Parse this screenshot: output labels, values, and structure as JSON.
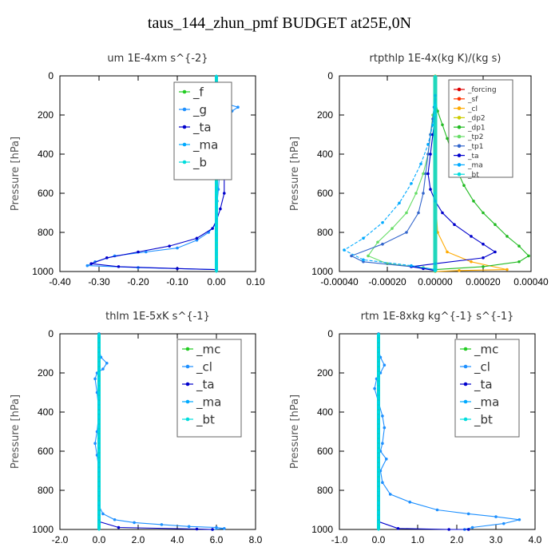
{
  "page_title": "taus_144_zhun_pmf  BUDGET at25E,0N",
  "chart_data": [
    {
      "type": "line",
      "title": "um   1E-4xm s^{-2}",
      "ylabel": "Pressure [hPa]",
      "xlim": [
        -0.4,
        0.1
      ],
      "ylim": [
        1000,
        0
      ],
      "xticks": [
        -0.4,
        -0.3,
        -0.2,
        -0.1,
        0.0,
        0.1
      ],
      "xticklabels": [
        "-0.40",
        "-0.30",
        "-0.20",
        "-0.10",
        "0.00",
        "0.10"
      ],
      "yticks": [
        0,
        200,
        400,
        600,
        800,
        1000
      ],
      "legend": "top-right",
      "legend_entries": [
        "_f",
        "_g",
        "_ta",
        "_ma",
        "_b"
      ],
      "series": [
        {
          "name": "_f",
          "color": "#22cc22",
          "x": [
            0,
            0,
            0,
            0,
            0,
            0,
            0,
            0,
            0,
            0,
            0
          ],
          "y": [
            0,
            100,
            200,
            300,
            400,
            500,
            600,
            700,
            800,
            900,
            1000
          ]
        },
        {
          "name": "_g",
          "color": "#1e90ff",
          "x": [
            0,
            0.005,
            0.02,
            0.055,
            0.04,
            0.01,
            -0.005,
            -0.01,
            -0.005,
            0.005,
            0.01,
            0.008,
            0.005,
            0.002,
            0,
            -0.002,
            -0.02,
            -0.05,
            -0.1,
            -0.18,
            -0.26,
            -0.31,
            -0.33,
            -0.2,
            0
          ],
          "y": [
            80,
            120,
            140,
            160,
            180,
            200,
            220,
            250,
            280,
            320,
            400,
            500,
            580,
            640,
            700,
            760,
            800,
            840,
            880,
            900,
            920,
            950,
            970,
            980,
            990
          ]
        },
        {
          "name": "_ta",
          "color": "#0000cc",
          "x": [
            0,
            -0.005,
            -0.01,
            -0.02,
            -0.01,
            0,
            0,
            0.01,
            0.02,
            0.02,
            0.01,
            0,
            -0.01,
            -0.05,
            -0.12,
            -0.2,
            -0.28,
            -0.32,
            -0.25,
            -0.1,
            0
          ],
          "y": [
            100,
            140,
            160,
            180,
            210,
            240,
            300,
            400,
            500,
            600,
            680,
            740,
            780,
            830,
            870,
            900,
            930,
            960,
            975,
            985,
            990
          ]
        },
        {
          "name": "_ma",
          "color": "#00aaff",
          "x": [
            0,
            0,
            0,
            0,
            0,
            0,
            0,
            0,
            0,
            0
          ],
          "y": [
            0,
            200,
            400,
            600,
            800,
            900,
            950,
            980,
            990,
            1000
          ]
        },
        {
          "name": "_b",
          "color": "#00dddd",
          "x": [
            0,
            0,
            0,
            0,
            0,
            0
          ],
          "y": [
            0,
            200,
            400,
            600,
            800,
            1000
          ]
        }
      ]
    },
    {
      "type": "line",
      "title": "rtpthlp   1E-4x(kg K)/(kg s)",
      "ylabel": "Pressure [hPa]",
      "xlim": [
        -0.0004,
        0.0004
      ],
      "ylim": [
        1000,
        0
      ],
      "xticks": [
        -0.0004,
        -0.0002,
        0,
        0.0002,
        0.0004
      ],
      "xticklabels": [
        "-0.00040",
        "-0.00020",
        "0.00000",
        "0.00020",
        "0.00040"
      ],
      "yticks": [
        0,
        200,
        400,
        600,
        800,
        1000
      ],
      "legend": "top-right",
      "legend_entries": [
        "_forcing",
        "_sf",
        "_cl",
        "_dp2",
        "_dp1",
        "_tp2",
        "_tp1",
        "_ta",
        "_ma",
        "_bt"
      ],
      "series": [
        {
          "name": "_forcing",
          "color": "#dd0000",
          "x": [
            0,
            0,
            0,
            0,
            0,
            0
          ],
          "y": [
            0,
            200,
            400,
            600,
            800,
            1000
          ]
        },
        {
          "name": "_sf",
          "color": "#ff3300",
          "x": [
            0,
            0,
            0,
            0,
            0,
            0
          ],
          "y": [
            0,
            200,
            400,
            600,
            800,
            1000
          ]
        },
        {
          "name": "_cl",
          "color": "#ffaa00",
          "x": [
            0,
            0,
            0,
            0,
            1e-05,
            5e-05,
            0.00015,
            0.0003,
            0.0001,
            0
          ],
          "y": [
            0,
            200,
            400,
            600,
            800,
            900,
            950,
            990,
            995,
            1000
          ]
        },
        {
          "name": "_dp2",
          "color": "#cccc00",
          "x": [
            0,
            0,
            0,
            0,
            0,
            0
          ],
          "y": [
            0,
            200,
            400,
            600,
            800,
            1000
          ]
        },
        {
          "name": "_dp1",
          "color": "#22bb22",
          "x": [
            0,
            1e-05,
            3e-05,
            5e-05,
            7e-05,
            9e-05,
            0.00012,
            0.00016,
            0.0002,
            0.00025,
            0.0003,
            0.00035,
            0.00039,
            0.00035,
            0.0002,
            0
          ],
          "y": [
            120,
            180,
            250,
            320,
            400,
            480,
            560,
            640,
            700,
            760,
            820,
            870,
            920,
            950,
            975,
            990
          ]
        },
        {
          "name": "_tp2",
          "color": "#66dd66",
          "x": [
            0,
            -1e-05,
            -2e-05,
            -3e-05,
            -5e-05,
            -8e-05,
            -0.00012,
            -0.00018,
            -0.00024,
            -0.00028,
            -0.0002,
            -5e-05,
            0
          ],
          "y": [
            140,
            200,
            300,
            400,
            500,
            600,
            700,
            780,
            850,
            920,
            960,
            980,
            990
          ]
        },
        {
          "name": "_tp1",
          "color": "#3366cc",
          "x": [
            0,
            -5e-06,
            -1e-05,
            -2e-05,
            -3e-05,
            -4e-05,
            -5e-05,
            -7e-05,
            -0.00012,
            -0.00022,
            -0.00035,
            -0.0003,
            -0.0001,
            0
          ],
          "y": [
            100,
            160,
            220,
            300,
            400,
            500,
            600,
            700,
            800,
            860,
            920,
            950,
            975,
            990
          ]
        },
        {
          "name": "_ta",
          "color": "#0000cc",
          "x": [
            0,
            0,
            -1e-05,
            -2e-05,
            -3e-05,
            -2e-05,
            0,
            3e-05,
            8e-05,
            0.00015,
            0.0002,
            0.00025,
            0.0002,
            0,
            -0.0001,
            -5e-05,
            0
          ],
          "y": [
            100,
            200,
            300,
            400,
            500,
            580,
            640,
            700,
            760,
            820,
            860,
            900,
            930,
            960,
            975,
            985,
            995
          ]
        },
        {
          "name": "_ma",
          "color": "#00aaff",
          "x": [
            0,
            -1e-05,
            -3e-05,
            -6e-05,
            -0.0001,
            -0.00015,
            -0.00022,
            -0.0003,
            -0.00038,
            -0.0003,
            -0.0001,
            0
          ],
          "y": [
            150,
            250,
            350,
            450,
            550,
            650,
            750,
            830,
            890,
            940,
            970,
            990
          ]
        },
        {
          "name": "_bt",
          "color": "#00dddd",
          "x": [
            0,
            0,
            0,
            0,
            0,
            0
          ],
          "y": [
            0,
            200,
            400,
            600,
            800,
            1000
          ]
        }
      ]
    },
    {
      "type": "line",
      "title": "thlm   1E-5xK s^{-1}",
      "ylabel": "Pressure [hPa]",
      "xlim": [
        -2.0,
        8.0
      ],
      "ylim": [
        1000,
        0
      ],
      "xticks": [
        -2,
        0,
        2,
        4,
        6,
        8
      ],
      "xticklabels": [
        "-2.0",
        "0.0",
        "2.0",
        "4.0",
        "6.0",
        "8.0"
      ],
      "yticks": [
        0,
        200,
        400,
        600,
        800,
        1000
      ],
      "legend": "top-right",
      "legend_entries": [
        "_mc",
        "_cl",
        "_ta",
        "_ma",
        "_bt"
      ],
      "series": [
        {
          "name": "_mc",
          "color": "#22cc22",
          "x": [
            0,
            0,
            0,
            0,
            0,
            0,
            0,
            0,
            0,
            0,
            0
          ],
          "y": [
            0,
            100,
            200,
            300,
            400,
            500,
            600,
            700,
            800,
            900,
            1000
          ]
        },
        {
          "name": "_cl",
          "color": "#1e90ff",
          "x": [
            0,
            0.1,
            0.4,
            0.2,
            -0.1,
            -0.2,
            -0.1,
            0,
            -0.1,
            -0.2,
            -0.1,
            0,
            0,
            0,
            0.2,
            0.8,
            1.8,
            3.2,
            4.6,
            6.0,
            6.4,
            5.8
          ],
          "y": [
            80,
            120,
            150,
            180,
            200,
            230,
            300,
            400,
            500,
            560,
            620,
            700,
            800,
            880,
            920,
            950,
            965,
            975,
            985,
            990,
            995,
            1000
          ]
        },
        {
          "name": "_ta",
          "color": "#0000cc",
          "x": [
            0,
            0,
            0,
            0,
            0,
            0,
            1,
            5,
            5.8
          ],
          "y": [
            0,
            200,
            400,
            600,
            800,
            960,
            990,
            998,
            1000
          ]
        },
        {
          "name": "_ma",
          "color": "#00aaff",
          "x": [
            0,
            0,
            0,
            0,
            0,
            0
          ],
          "y": [
            0,
            200,
            400,
            600,
            800,
            1000
          ]
        },
        {
          "name": "_bt",
          "color": "#00dddd",
          "x": [
            0,
            0,
            0,
            0,
            0,
            0
          ],
          "y": [
            0,
            200,
            400,
            600,
            800,
            1000
          ]
        }
      ]
    },
    {
      "type": "line",
      "title": "rtm   1E-8xkg kg^{-1} s^{-1}",
      "ylabel": "Pressure [hPa]",
      "xlim": [
        -1.0,
        4.0
      ],
      "ylim": [
        1000,
        0
      ],
      "xticks": [
        -1,
        0,
        1,
        2,
        3,
        4
      ],
      "xticklabels": [
        "-1.0",
        "0.0",
        "1.0",
        "2.0",
        "3.0",
        "4.0"
      ],
      "yticks": [
        0,
        200,
        400,
        600,
        800,
        1000
      ],
      "legend": "top-right",
      "legend_entries": [
        "_mc",
        "_cl",
        "_ta",
        "_ma",
        "_bt"
      ],
      "series": [
        {
          "name": "_mc",
          "color": "#22cc22",
          "x": [
            0,
            0,
            0,
            0,
            0,
            0,
            0,
            0,
            0,
            0,
            0
          ],
          "y": [
            0,
            100,
            200,
            300,
            400,
            500,
            600,
            700,
            800,
            900,
            1000
          ]
        },
        {
          "name": "_cl",
          "color": "#1e90ff",
          "x": [
            0,
            0.05,
            0.15,
            0.05,
            -0.05,
            -0.1,
            0,
            0.1,
            0.15,
            0.1,
            0.05,
            0.2,
            0.05,
            0.1,
            0.3,
            0.8,
            1.5,
            2.3,
            3.0,
            3.6,
            3.2,
            2.4,
            2.2
          ],
          "y": [
            80,
            120,
            160,
            200,
            230,
            280,
            350,
            420,
            480,
            560,
            600,
            640,
            700,
            760,
            820,
            860,
            900,
            920,
            935,
            950,
            970,
            990,
            1000
          ]
        },
        {
          "name": "_ta",
          "color": "#0000cc",
          "x": [
            0,
            0,
            0,
            0,
            0,
            0,
            0.5,
            1.8,
            2.3
          ],
          "y": [
            0,
            200,
            400,
            600,
            800,
            960,
            995,
            1000,
            1000
          ]
        },
        {
          "name": "_ma",
          "color": "#00aaff",
          "x": [
            0,
            0,
            0,
            0,
            0,
            0
          ],
          "y": [
            0,
            200,
            400,
            600,
            800,
            1000
          ]
        },
        {
          "name": "_bt",
          "color": "#00dddd",
          "x": [
            0,
            0,
            0,
            0,
            0,
            0
          ],
          "y": [
            0,
            200,
            400,
            600,
            800,
            1000
          ]
        }
      ]
    }
  ]
}
